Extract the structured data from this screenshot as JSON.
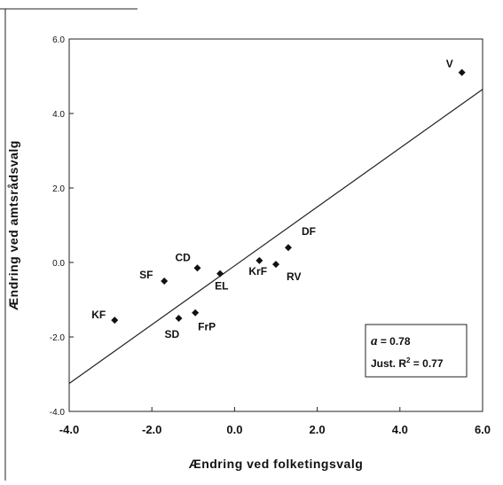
{
  "chart_data": {
    "type": "scatter",
    "title": "",
    "xlabel": "Ændring ved folketingsvalg",
    "ylabel": "Ændring ved amtsrådsvalg",
    "xlim": [
      -4.0,
      6.0
    ],
    "ylim": [
      -4.0,
      6.0
    ],
    "x_ticks": [
      "-4.0",
      "-2.0",
      "0.0",
      "2.0",
      "4.0",
      "6.0"
    ],
    "y_ticks": [
      "-4.0",
      "-2.0",
      "0.0",
      "2.0",
      "4.0",
      "6.0"
    ],
    "grid": false,
    "points": [
      {
        "label": "V",
        "x": 5.5,
        "y": 5.1
      },
      {
        "label": "DF",
        "x": 1.3,
        "y": 0.4
      },
      {
        "label": "RV",
        "x": 1.0,
        "y": -0.05
      },
      {
        "label": "KrF",
        "x": 0.6,
        "y": 0.05
      },
      {
        "label": "EL",
        "x": -0.35,
        "y": -0.3
      },
      {
        "label": "CD",
        "x": -0.9,
        "y": -0.15
      },
      {
        "label": "SF",
        "x": -1.7,
        "y": -0.5
      },
      {
        "label": "FrP",
        "x": -0.95,
        "y": -1.35
      },
      {
        "label": "SD",
        "x": -1.35,
        "y": -1.5
      },
      {
        "label": "KF",
        "x": -2.9,
        "y": -1.55
      }
    ],
    "regression_line": {
      "x": [
        -4.0,
        6.0
      ],
      "y": [
        -3.25,
        4.65
      ]
    },
    "annotation": {
      "alpha_symbol": "a",
      "alpha_text": " = 0.78",
      "r2_prefix": "Just. R",
      "r2_sup": "2",
      "r2_suffix": " = 0.77"
    }
  }
}
